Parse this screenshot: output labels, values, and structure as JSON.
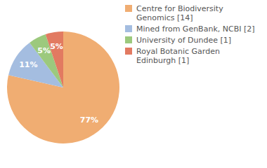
{
  "chart_data": {
    "type": "pie",
    "categories": [
      "Centre for Biodiversity Genomics [14]",
      "Mined from GenBank, NCBI [2]",
      "University of Dundee [1]",
      "Royal Botanic Garden Edinburgh [1]"
    ],
    "values": [
      77,
      11,
      5,
      5
    ],
    "value_labels": [
      "77%",
      "11%",
      "5%",
      "5%"
    ],
    "colors": [
      "#f0ad72",
      "#a4bde0",
      "#9cc97d",
      "#e27a61"
    ],
    "data_labels": true,
    "legend": "right"
  }
}
